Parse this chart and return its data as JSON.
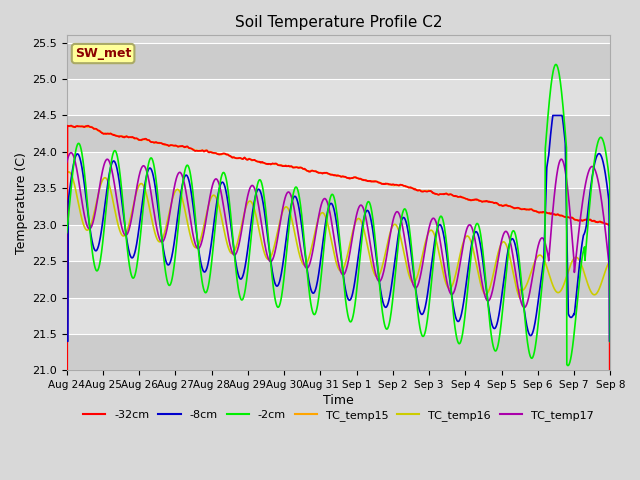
{
  "title": "Soil Temperature Profile C2",
  "xlabel": "Time",
  "ylabel": "Temperature (C)",
  "ylim": [
    21.0,
    25.6
  ],
  "annotation_text": "SW_met",
  "annotation_color": "#8B0000",
  "annotation_bg": "#FFFF99",
  "line_colors": {
    "m32cm": "#FF0000",
    "m8cm": "#0000CC",
    "m2cm": "#00EE00",
    "TC_temp15": "#FFA500",
    "TC_temp16": "#CCCC00",
    "TC_temp17": "#AA00AA"
  },
  "legend_labels": [
    "-32cm",
    "-8cm",
    "-2cm",
    "TC_temp15",
    "TC_temp16",
    "TC_temp17"
  ],
  "x_tick_labels": [
    "Aug 24",
    "Aug 25",
    "Aug 26",
    "Aug 27",
    "Aug 28",
    "Aug 29",
    "Aug 30",
    "Aug 31",
    "Sep 1",
    "Sep 2",
    "Sep 3",
    "Sep 4",
    "Sep 5",
    "Sep 6",
    "Sep 7",
    "Sep 8"
  ],
  "n_points": 1440
}
